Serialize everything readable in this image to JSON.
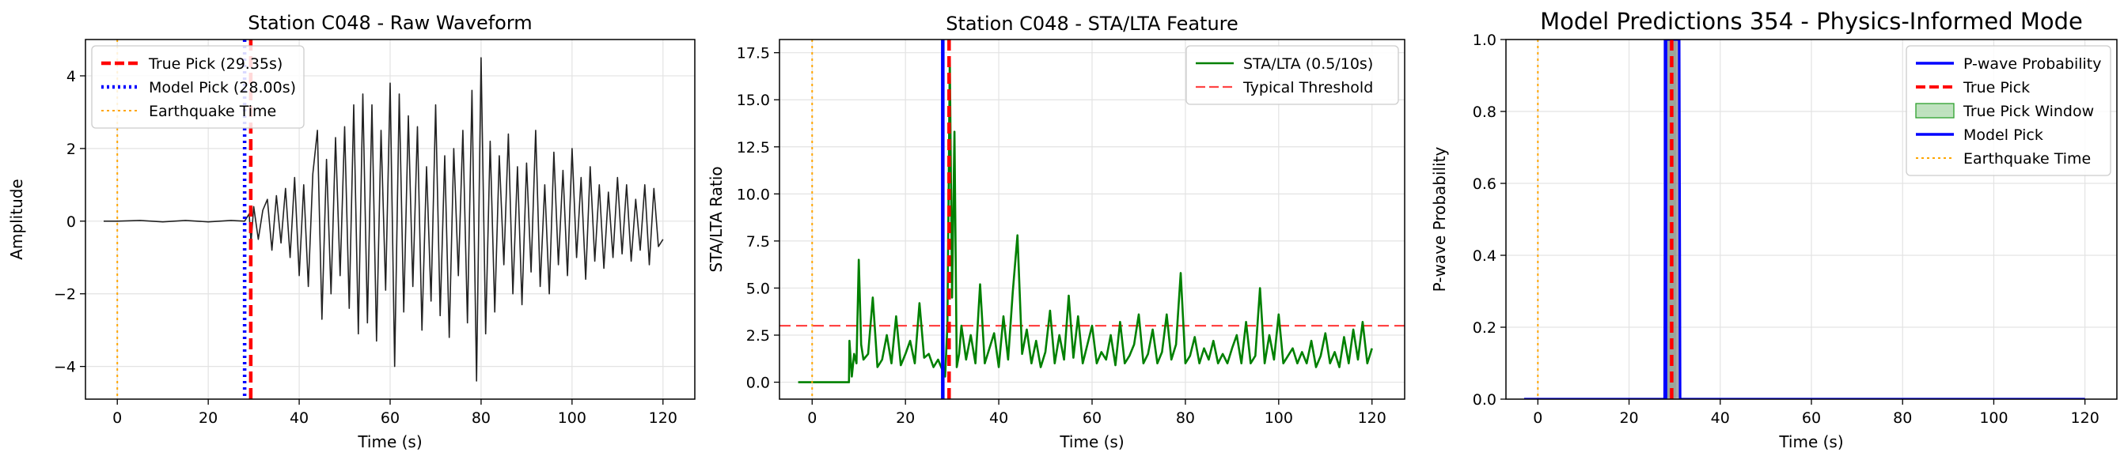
{
  "chart_data": [
    {
      "type": "line",
      "title": "Station C048 - Raw Waveform",
      "xlabel": "Time (s)",
      "ylabel": "Amplitude",
      "xlim": [
        -7,
        127
      ],
      "ylim": [
        -4.9,
        5.0
      ],
      "xticks": [
        0,
        20,
        40,
        60,
        80,
        100,
        120
      ],
      "xtick_labels": [
        "0",
        "20",
        "40",
        "60",
        "80",
        "100",
        "120"
      ],
      "yticks": [
        -4,
        -2,
        0,
        2,
        4
      ],
      "ytick_labels": [
        "−4",
        "−2",
        "0",
        "2",
        "4"
      ],
      "grid": true,
      "legend_position": "upper-left",
      "series": [
        {
          "name": "",
          "color": "#222222",
          "x": [
            -3,
            0,
            5,
            10,
            15,
            20,
            25,
            28,
            29,
            29.4,
            30,
            31,
            32,
            33,
            34,
            35,
            36,
            37,
            38,
            39,
            40,
            41,
            42,
            43,
            44,
            45,
            46,
            47,
            48,
            49,
            50,
            51,
            52,
            53,
            54,
            55,
            56,
            57,
            58,
            59,
            60,
            61,
            62,
            63,
            64,
            65,
            66,
            67,
            68,
            69,
            70,
            71,
            72,
            73,
            74,
            75,
            76,
            77,
            78,
            79,
            80,
            81,
            82,
            83,
            84,
            85,
            86,
            87,
            88,
            89,
            90,
            91,
            92,
            93,
            94,
            95,
            96,
            97,
            98,
            99,
            100,
            101,
            102,
            103,
            104,
            105,
            106,
            107,
            108,
            109,
            110,
            111,
            112,
            113,
            114,
            115,
            116,
            117,
            118,
            119,
            120
          ],
          "y": [
            0,
            0,
            0.02,
            -0.02,
            0.02,
            -0.02,
            0.02,
            0,
            0.2,
            -0.6,
            0.4,
            -0.5,
            0.3,
            0.6,
            -0.8,
            0.7,
            -0.6,
            0.9,
            -1.0,
            1.2,
            -1.5,
            1.0,
            -1.8,
            1.3,
            2.5,
            -2.7,
            1.7,
            -2.0,
            2.3,
            -1.5,
            2.6,
            -2.4,
            3.2,
            -3.1,
            3.5,
            -2.8,
            3.2,
            -3.3,
            2.5,
            -1.9,
            3.8,
            -4.0,
            3.5,
            -2.5,
            2.9,
            -1.8,
            2.6,
            -3.0,
            1.5,
            -2.2,
            3.2,
            -2.6,
            1.8,
            -3.2,
            2.0,
            -1.5,
            2.5,
            -2.8,
            3.6,
            -4.4,
            4.5,
            -3.1,
            2.2,
            -2.5,
            1.8,
            -1.2,
            2.4,
            -2.0,
            1.5,
            -2.3,
            1.6,
            -1.4,
            2.5,
            -1.8,
            1.0,
            -2.0,
            1.9,
            -1.2,
            1.4,
            -1.5,
            2.0,
            -1.0,
            1.2,
            -1.6,
            1.5,
            -1.1,
            1.0,
            -1.3,
            0.8,
            -1.0,
            1.2,
            -0.9,
            1.0,
            -1.1,
            0.6,
            -0.8,
            1.0,
            -1.2,
            0.9,
            -0.7,
            -0.5
          ]
        }
      ],
      "vlines": [
        {
          "name": "True Pick (29.35s)",
          "x": 29.35,
          "color": "#ff0000",
          "style": "dashed"
        },
        {
          "name": "Model Pick (28.00s)",
          "x": 28.0,
          "color": "#0000ff",
          "style": "dotted"
        },
        {
          "name": "Earthquake Time",
          "x": 0,
          "color": "#ffa500",
          "style": "dotted"
        }
      ]
    },
    {
      "type": "line",
      "title": "Station C048 - STA/LTA Feature",
      "xlabel": "Time (s)",
      "ylabel": "STA/LTA Ratio",
      "xlim": [
        -7,
        127
      ],
      "ylim": [
        -0.9,
        18.2
      ],
      "xticks": [
        0,
        20,
        40,
        60,
        80,
        100,
        120
      ],
      "xtick_labels": [
        "0",
        "20",
        "40",
        "60",
        "80",
        "100",
        "120"
      ],
      "yticks": [
        0,
        2.5,
        5,
        7.5,
        10,
        12.5,
        15,
        17.5
      ],
      "ytick_labels": [
        "0.0",
        "2.5",
        "5.0",
        "7.5",
        "10.0",
        "12.5",
        "15.0",
        "17.5"
      ],
      "grid": true,
      "legend_position": "upper-right",
      "series": [
        {
          "name": "STA/LTA (0.5/10s)",
          "color": "#008000",
          "x": [
            -3,
            7.9,
            8,
            8.5,
            9,
            9.5,
            10,
            10.5,
            11,
            12,
            13,
            14,
            15,
            16,
            17,
            18,
            19,
            20,
            21,
            22,
            23,
            24,
            25,
            26,
            27,
            28,
            28.5,
            29,
            29.5,
            30,
            30.5,
            31,
            31.5,
            32,
            33,
            34,
            35,
            36,
            37,
            38,
            39,
            40,
            41,
            42,
            43,
            44,
            45,
            46,
            47,
            48,
            49,
            50,
            51,
            52,
            53,
            54,
            55,
            56,
            57,
            58,
            59,
            60,
            61,
            62,
            63,
            64,
            65,
            66,
            67,
            68,
            69,
            70,
            71,
            72,
            73,
            74,
            75,
            76,
            77,
            78,
            79,
            80,
            81,
            82,
            83,
            84,
            85,
            86,
            87,
            88,
            89,
            90,
            91,
            92,
            93,
            94,
            95,
            96,
            97,
            98,
            99,
            100,
            101,
            102,
            103,
            104,
            105,
            106,
            107,
            108,
            109,
            110,
            111,
            112,
            113,
            114,
            115,
            116,
            117,
            118,
            119,
            120
          ],
          "y": [
            0,
            0,
            2.2,
            0.3,
            1.5,
            1.0,
            6.5,
            2.0,
            1.2,
            1.5,
            4.5,
            0.8,
            1.2,
            2.5,
            1.0,
            3.5,
            0.9,
            1.5,
            2.2,
            1.0,
            4.2,
            1.3,
            1.5,
            0.8,
            1.2,
            0.6,
            0.3,
            3.0,
            17.2,
            4.5,
            13.3,
            0.8,
            1.5,
            3.0,
            1.2,
            2.5,
            1.0,
            5.2,
            1.0,
            1.8,
            2.6,
            0.8,
            3.5,
            1.2,
            4.8,
            7.8,
            1.5,
            2.8,
            1.0,
            2.2,
            0.8,
            1.6,
            3.8,
            1.0,
            2.5,
            1.2,
            4.6,
            1.3,
            3.5,
            1.0,
            2.0,
            3.0,
            1.0,
            1.6,
            1.2,
            2.5,
            0.9,
            3.2,
            1.0,
            1.4,
            2.0,
            3.6,
            1.0,
            1.5,
            2.8,
            1.0,
            1.6,
            3.6,
            1.2,
            2.0,
            5.8,
            1.0,
            1.4,
            2.4,
            1.0,
            1.8,
            1.2,
            2.2,
            1.0,
            1.5,
            1.0,
            1.8,
            2.5,
            1.0,
            3.2,
            1.0,
            1.4,
            5.0,
            1.0,
            2.5,
            1.2,
            3.6,
            1.0,
            1.4,
            1.8,
            1.0,
            1.6,
            1.0,
            2.2,
            0.8,
            1.4,
            2.6,
            1.0,
            1.6,
            0.8,
            2.4,
            1.0,
            2.8,
            1.2,
            3.2,
            1.0,
            1.8
          ]
        }
      ],
      "hlines": [
        {
          "name": "Typical Threshold",
          "y": 3.0,
          "color": "#ff4444",
          "style": "dashed"
        }
      ],
      "vlines": [
        {
          "name": "",
          "x": 29.35,
          "color": "#ff0000",
          "style": "dashed"
        },
        {
          "name": "",
          "x": 28.0,
          "color": "#0000ff",
          "style": "solid"
        },
        {
          "name": "",
          "x": 0,
          "color": "#ffa500",
          "style": "dotted"
        }
      ]
    },
    {
      "type": "line",
      "title": "Model Predictions 354 - Physics-Informed Mode",
      "xlabel": "Time (s)",
      "ylabel": "P-wave Probability",
      "xlim": [
        -7,
        127
      ],
      "ylim": [
        0,
        1
      ],
      "xticks": [
        0,
        20,
        40,
        60,
        80,
        100,
        120
      ],
      "xtick_labels": [
        "0",
        "20",
        "40",
        "60",
        "80",
        "100",
        "120"
      ],
      "yticks": [
        0,
        0.2,
        0.4,
        0.6,
        0.8,
        1.0
      ],
      "ytick_labels": [
        "0.0",
        "0.2",
        "0.4",
        "0.6",
        "0.8",
        "1.0"
      ],
      "grid": true,
      "legend_position": "upper-right",
      "series": [
        {
          "name": "P-wave Probability",
          "color": "#0000ff",
          "x": [
            -3,
            27.8,
            28,
            29,
            30,
            31,
            31.2,
            120
          ],
          "y": [
            0,
            0,
            1.0,
            1.0,
            1.0,
            1.0,
            0,
            0
          ]
        }
      ],
      "spans": [
        {
          "name": "True Pick Window",
          "x0": 28.35,
          "x1": 30.35,
          "color": "#2ca02c"
        }
      ],
      "vlines": [
        {
          "name": "True Pick",
          "x": 29.35,
          "color": "#ff0000",
          "style": "dashed"
        },
        {
          "name": "Model Pick",
          "x": 28.0,
          "color": "#0000ff",
          "style": "solid"
        },
        {
          "name": "Earthquake Time",
          "x": 0,
          "color": "#ffa500",
          "style": "dotted"
        }
      ]
    }
  ]
}
